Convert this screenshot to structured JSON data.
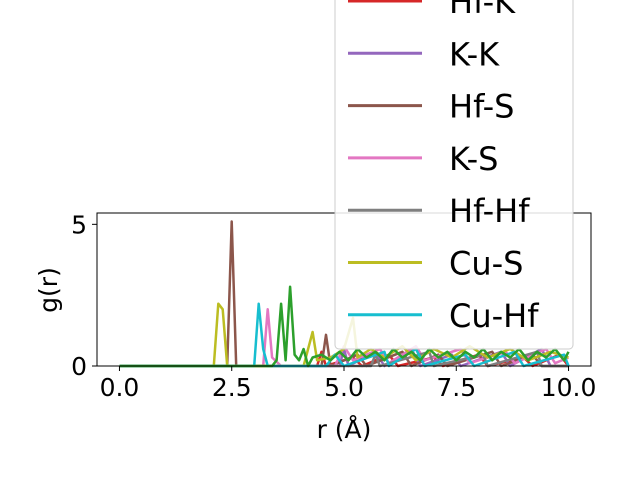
{
  "chart_data": {
    "type": "line",
    "title": "",
    "xlabel": "r ($\\AA$)",
    "xlabel_display": "r (Å)",
    "ylabel": "g(r)",
    "xlim": [
      -0.5,
      10.5
    ],
    "ylim": [
      0,
      5.4
    ],
    "xticks": [
      "0.0",
      "2.5",
      "5.0",
      "7.5",
      "10.0"
    ],
    "xtick_values": [
      0,
      2.5,
      5,
      7.5,
      10
    ],
    "yticks": [
      "0",
      "5"
    ],
    "ytick_values": [
      0,
      5
    ],
    "grid": false,
    "legend_placement": "upper right (extends above plot area)",
    "series": [
      {
        "name": "Hf-K",
        "color": "#d62728",
        "points": [
          [
            0,
            0
          ],
          [
            4.4,
            0
          ],
          [
            4.5,
            0.5
          ],
          [
            4.6,
            0
          ],
          [
            5.2,
            0.3
          ],
          [
            5.4,
            0
          ],
          [
            6.0,
            0.4
          ],
          [
            6.2,
            0
          ],
          [
            7.0,
            0.3
          ],
          [
            7.2,
            0
          ],
          [
            8.0,
            0.4
          ],
          [
            8.2,
            0
          ],
          [
            9.0,
            0.3
          ],
          [
            9.2,
            0
          ],
          [
            9.8,
            0.4
          ],
          [
            10,
            0
          ]
        ]
      },
      {
        "name": "K-K",
        "color": "#9467bd",
        "points": [
          [
            0,
            0
          ],
          [
            4.9,
            0
          ],
          [
            5.0,
            0.6
          ],
          [
            5.1,
            0
          ],
          [
            5.7,
            0.5
          ],
          [
            5.9,
            0
          ],
          [
            6.5,
            0.6
          ],
          [
            6.7,
            0
          ],
          [
            7.4,
            0.4
          ],
          [
            7.6,
            0
          ],
          [
            8.5,
            0.5
          ],
          [
            8.7,
            0
          ],
          [
            9.4,
            0.6
          ],
          [
            9.6,
            0
          ],
          [
            10,
            0
          ]
        ]
      },
      {
        "name": "Hf-S",
        "color": "#8c564b",
        "points": [
          [
            0,
            0
          ],
          [
            2.4,
            0
          ],
          [
            2.5,
            5.1
          ],
          [
            2.6,
            0
          ],
          [
            4.5,
            0
          ],
          [
            4.6,
            1.1
          ],
          [
            4.7,
            0
          ],
          [
            5.3,
            0.4
          ],
          [
            5.5,
            0
          ],
          [
            6.3,
            0.5
          ],
          [
            6.5,
            0
          ],
          [
            7.1,
            0.4
          ],
          [
            7.3,
            0
          ],
          [
            8.3,
            0.5
          ],
          [
            8.5,
            0
          ],
          [
            9.2,
            0.4
          ],
          [
            9.4,
            0
          ],
          [
            10,
            0
          ]
        ]
      },
      {
        "name": "K-S",
        "color": "#e377c2",
        "points": [
          [
            0,
            0
          ],
          [
            3.2,
            0
          ],
          [
            3.3,
            2.0
          ],
          [
            3.4,
            0.3
          ],
          [
            3.6,
            0
          ],
          [
            4.8,
            0
          ],
          [
            5.0,
            0.7
          ],
          [
            5.2,
            0.2
          ],
          [
            5.8,
            0.6
          ],
          [
            6.0,
            0.1
          ],
          [
            6.6,
            0.7
          ],
          [
            6.8,
            0.2
          ],
          [
            7.6,
            0.6
          ],
          [
            7.8,
            0.1
          ],
          [
            8.6,
            0.5
          ],
          [
            8.8,
            0.1
          ],
          [
            9.5,
            0.6
          ],
          [
            9.7,
            0.1
          ],
          [
            10,
            0.3
          ]
        ]
      },
      {
        "name": "Hf-Hf",
        "color": "#7f7f7f",
        "points": [
          [
            0,
            0
          ],
          [
            5.6,
            0
          ],
          [
            5.7,
            0.4
          ],
          [
            5.8,
            0
          ],
          [
            6.9,
            0.5
          ],
          [
            7.0,
            0
          ],
          [
            8.1,
            0.4
          ],
          [
            8.2,
            0
          ],
          [
            9.3,
            0.5
          ],
          [
            9.4,
            0
          ],
          [
            10,
            0
          ]
        ]
      },
      {
        "name": "Cu-S",
        "color": "#bcbd22",
        "points": [
          [
            0,
            0
          ],
          [
            2.1,
            0
          ],
          [
            2.2,
            2.2
          ],
          [
            2.3,
            2.0
          ],
          [
            2.4,
            0
          ],
          [
            4.1,
            0
          ],
          [
            4.3,
            1.2
          ],
          [
            4.4,
            0.2
          ],
          [
            4.7,
            0.3
          ],
          [
            5.0,
            0.6
          ],
          [
            5.2,
            1.7
          ],
          [
            5.3,
            0.3
          ],
          [
            5.6,
            0.6
          ],
          [
            5.9,
            0.3
          ],
          [
            6.3,
            0.7
          ],
          [
            6.6,
            0.2
          ],
          [
            7.0,
            0.6
          ],
          [
            7.4,
            0.3
          ],
          [
            7.8,
            0.7
          ],
          [
            8.2,
            0.3
          ],
          [
            8.7,
            0.6
          ],
          [
            9.1,
            0.2
          ],
          [
            9.6,
            0.5
          ],
          [
            10,
            0.3
          ]
        ]
      },
      {
        "name": "Cu-Hf",
        "color": "#17becf",
        "points": [
          [
            0,
            0
          ],
          [
            3.0,
            0
          ],
          [
            3.1,
            2.2
          ],
          [
            3.2,
            0.6
          ],
          [
            3.3,
            0
          ],
          [
            4.6,
            0
          ],
          [
            4.8,
            0.4
          ],
          [
            5.0,
            0
          ],
          [
            5.9,
            0.5
          ],
          [
            6.0,
            0
          ],
          [
            6.6,
            0.6
          ],
          [
            6.8,
            0
          ],
          [
            7.7,
            0.4
          ],
          [
            7.9,
            0
          ],
          [
            8.8,
            0.5
          ],
          [
            9.0,
            0
          ],
          [
            9.9,
            0.4
          ],
          [
            10,
            0
          ]
        ]
      },
      {
        "name": "",
        "color": "#2ca02c",
        "points": [
          [
            0,
            0
          ],
          [
            3.4,
            0
          ],
          [
            3.5,
            0.2
          ],
          [
            3.6,
            2.2
          ],
          [
            3.7,
            0.2
          ],
          [
            3.8,
            2.8
          ],
          [
            3.9,
            0.4
          ],
          [
            4.0,
            0.2
          ],
          [
            4.1,
            0.6
          ],
          [
            4.2,
            0
          ],
          [
            4.3,
            0.3
          ],
          [
            4.5,
            0.4
          ],
          [
            4.7,
            0.2
          ],
          [
            4.9,
            0.5
          ],
          [
            5.1,
            0.2
          ],
          [
            5.3,
            0.6
          ],
          [
            5.5,
            0.3
          ],
          [
            5.7,
            0.5
          ],
          [
            5.9,
            0.2
          ],
          [
            6.1,
            0.6
          ],
          [
            6.3,
            0.3
          ],
          [
            6.5,
            0.5
          ],
          [
            6.7,
            0.2
          ],
          [
            6.9,
            0.6
          ],
          [
            7.1,
            0.3
          ],
          [
            7.3,
            0.5
          ],
          [
            7.5,
            0.2
          ],
          [
            7.7,
            0.5
          ],
          [
            7.9,
            0.3
          ],
          [
            8.1,
            0.6
          ],
          [
            8.3,
            0.2
          ],
          [
            8.5,
            0.5
          ],
          [
            8.7,
            0.3
          ],
          [
            8.9,
            0.6
          ],
          [
            9.1,
            0.2
          ],
          [
            9.3,
            0.5
          ],
          [
            9.5,
            0.3
          ],
          [
            9.7,
            0.6
          ],
          [
            9.9,
            0.2
          ],
          [
            10,
            0.5
          ]
        ]
      }
    ]
  }
}
